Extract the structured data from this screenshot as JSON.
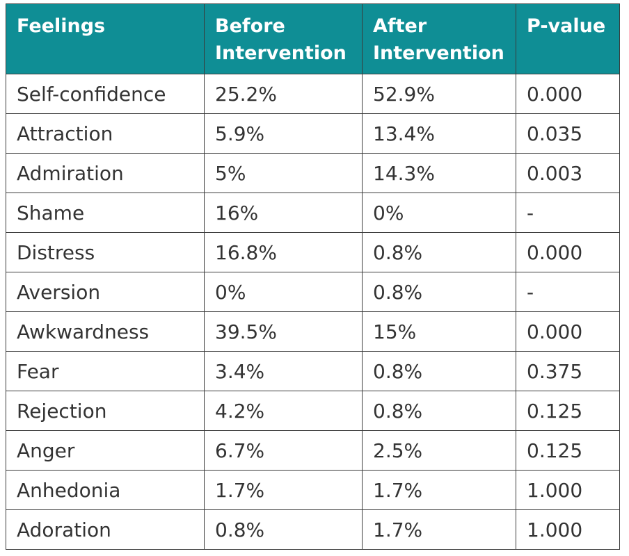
{
  "table": {
    "headers": [
      "Feelings",
      "Before Intervention",
      "After Intervention",
      "P-value"
    ],
    "rows": [
      [
        "Self-confidence",
        "25.2%",
        "52.9%",
        "0.000"
      ],
      [
        "Attraction",
        "5.9%",
        "13.4%",
        "0.035"
      ],
      [
        "Admiration",
        "5%",
        "14.3%",
        "0.003"
      ],
      [
        "Shame",
        "16%",
        "0%",
        "-"
      ],
      [
        "Distress",
        "16.8%",
        "0.8%",
        "0.000"
      ],
      [
        "Aversion",
        "0%",
        "0.8%",
        "-"
      ],
      [
        "Awkwardness",
        "39.5%",
        "15%",
        "0.000"
      ],
      [
        "Fear",
        "3.4%",
        "0.8%",
        "0.375"
      ],
      [
        "Rejection",
        "4.2%",
        "0.8%",
        "0.125"
      ],
      [
        "Anger",
        "6.7%",
        "2.5%",
        "0.125"
      ],
      [
        "Anhedonia",
        "1.7%",
        "1.7%",
        "1.000"
      ],
      [
        "Adoration",
        "0.8%",
        "1.7%",
        "1.000"
      ]
    ]
  },
  "colors": {
    "header_bg": "#0f8e95",
    "header_text": "#ffffff",
    "cell_text": "#333333",
    "border": "#3a3a3a"
  }
}
